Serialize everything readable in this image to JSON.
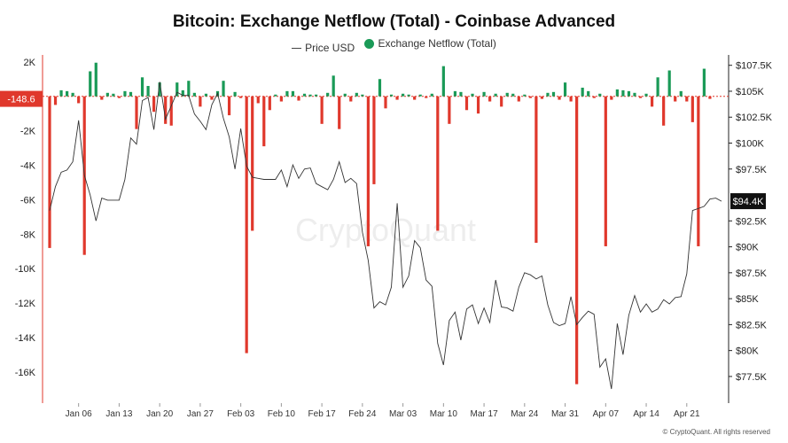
{
  "chart_data": {
    "type": "bar+line",
    "title": "Bitcoin: Exchange Netflow (Total) - Coinbase Advanced",
    "legend": [
      {
        "name": "Price USD",
        "marker": "line",
        "color": "#444444"
      },
      {
        "name": "Exchange Netflow (Total)",
        "marker": "dot",
        "color": "#1a9a57"
      }
    ],
    "legend_position": "top-center",
    "watermark": "CryptoQuant",
    "credit": "© CryptoQuant. All rights reserved",
    "colors": {
      "positive": "#1a9a57",
      "negative": "#e0382c",
      "price": "#333333",
      "zero_line": "#e0382c"
    },
    "x_axis": {
      "type": "date",
      "range": [
        "2025-01-01",
        "2025-04-27"
      ],
      "tick_labels": [
        "Jan 06",
        "Jan 13",
        "Jan 20",
        "Jan 27",
        "Feb 03",
        "Feb 10",
        "Feb 17",
        "Feb 24",
        "Mar 03",
        "Mar 10",
        "Mar 17",
        "Mar 24",
        "Mar 31",
        "Apr 07",
        "Apr 14",
        "Apr 21"
      ],
      "tick_dates": [
        "2025-01-06",
        "2025-01-13",
        "2025-01-20",
        "2025-01-27",
        "2025-02-03",
        "2025-02-10",
        "2025-02-17",
        "2025-02-24",
        "2025-03-03",
        "2025-03-10",
        "2025-03-17",
        "2025-03-24",
        "2025-03-31",
        "2025-04-07",
        "2025-04-14",
        "2025-04-21"
      ]
    },
    "y_left": {
      "name": "Exchange Netflow (Total)",
      "range": [
        -17800,
        2400
      ],
      "tick_values": [
        2000,
        -2000,
        -4000,
        -6000,
        -8000,
        -10000,
        -12000,
        -14000,
        -16000
      ],
      "tick_labels": [
        "2K",
        "-2K",
        "-4K",
        "-6K",
        "-8K",
        "-10K",
        "-12K",
        "-14K",
        "-16K"
      ],
      "current_value_label": "-148.6",
      "current_value": -148.6
    },
    "y_right": {
      "name": "Price USD",
      "range": [
        74930,
        108500
      ],
      "tick_values": [
        107500,
        105000,
        102500,
        100000,
        97500,
        92500,
        90000,
        87500,
        85000,
        82500,
        80000,
        77500
      ],
      "tick_labels": [
        "$107.5K",
        "$105K",
        "$102.5K",
        "$100K",
        "$97.5K",
        "$92.5K",
        "$90K",
        "$87.5K",
        "$85K",
        "$82.5K",
        "$80K",
        "$77.5K"
      ],
      "current_value_label": "$94.4K",
      "current_value": 94400
    },
    "grid": false,
    "netflow": [
      {
        "date": "2025-01-01",
        "value": -8800
      },
      {
        "date": "2025-01-02",
        "value": -500
      },
      {
        "date": "2025-01-03",
        "value": 350
      },
      {
        "date": "2025-01-04",
        "value": 300
      },
      {
        "date": "2025-01-05",
        "value": 200
      },
      {
        "date": "2025-01-06",
        "value": -400
      },
      {
        "date": "2025-01-07",
        "value": -9200
      },
      {
        "date": "2025-01-08",
        "value": 1450
      },
      {
        "date": "2025-01-09",
        "value": 1950
      },
      {
        "date": "2025-01-10",
        "value": -200
      },
      {
        "date": "2025-01-11",
        "value": 200
      },
      {
        "date": "2025-01-12",
        "value": 150
      },
      {
        "date": "2025-01-13",
        "value": -100
      },
      {
        "date": "2025-01-14",
        "value": 300
      },
      {
        "date": "2025-01-15",
        "value": 250
      },
      {
        "date": "2025-01-16",
        "value": -1900
      },
      {
        "date": "2025-01-17",
        "value": 1100
      },
      {
        "date": "2025-01-18",
        "value": 600
      },
      {
        "date": "2025-01-19",
        "value": -900
      },
      {
        "date": "2025-01-20",
        "value": 800
      },
      {
        "date": "2025-01-21",
        "value": -1600
      },
      {
        "date": "2025-01-22",
        "value": -1700
      },
      {
        "date": "2025-01-23",
        "value": 800
      },
      {
        "date": "2025-01-24",
        "value": 350
      },
      {
        "date": "2025-01-25",
        "value": 900
      },
      {
        "date": "2025-01-26",
        "value": 200
      },
      {
        "date": "2025-01-27",
        "value": -600
      },
      {
        "date": "2025-01-28",
        "value": 150
      },
      {
        "date": "2025-01-29",
        "value": -200
      },
      {
        "date": "2025-01-30",
        "value": 300
      },
      {
        "date": "2025-01-31",
        "value": 900
      },
      {
        "date": "2025-02-01",
        "value": -1100
      },
      {
        "date": "2025-02-02",
        "value": 250
      },
      {
        "date": "2025-02-03",
        "value": -100
      },
      {
        "date": "2025-02-04",
        "value": -14900
      },
      {
        "date": "2025-02-05",
        "value": -7800
      },
      {
        "date": "2025-02-06",
        "value": -400
      },
      {
        "date": "2025-02-07",
        "value": -2900
      },
      {
        "date": "2025-02-08",
        "value": -800
      },
      {
        "date": "2025-02-09",
        "value": 100
      },
      {
        "date": "2025-02-10",
        "value": -300
      },
      {
        "date": "2025-02-11",
        "value": 300
      },
      {
        "date": "2025-02-12",
        "value": 300
      },
      {
        "date": "2025-02-13",
        "value": -250
      },
      {
        "date": "2025-02-14",
        "value": 150
      },
      {
        "date": "2025-02-15",
        "value": 100
      },
      {
        "date": "2025-02-16",
        "value": 100
      },
      {
        "date": "2025-02-17",
        "value": -1600
      },
      {
        "date": "2025-02-18",
        "value": 200
      },
      {
        "date": "2025-02-19",
        "value": 1200
      },
      {
        "date": "2025-02-20",
        "value": -1900
      },
      {
        "date": "2025-02-21",
        "value": 150
      },
      {
        "date": "2025-02-22",
        "value": -300
      },
      {
        "date": "2025-02-23",
        "value": 200
      },
      {
        "date": "2025-02-24",
        "value": 100
      },
      {
        "date": "2025-02-25",
        "value": -8700
      },
      {
        "date": "2025-02-26",
        "value": -5100
      },
      {
        "date": "2025-02-27",
        "value": 1000
      },
      {
        "date": "2025-02-28",
        "value": -700
      },
      {
        "date": "2025-03-01",
        "value": 100
      },
      {
        "date": "2025-03-02",
        "value": -200
      },
      {
        "date": "2025-03-03",
        "value": 150
      },
      {
        "date": "2025-03-04",
        "value": 100
      },
      {
        "date": "2025-03-05",
        "value": -200
      },
      {
        "date": "2025-03-06",
        "value": 100
      },
      {
        "date": "2025-03-07",
        "value": -100
      },
      {
        "date": "2025-03-08",
        "value": 150
      },
      {
        "date": "2025-03-09",
        "value": -7800
      },
      {
        "date": "2025-03-10",
        "value": 1750
      },
      {
        "date": "2025-03-11",
        "value": -1600
      },
      {
        "date": "2025-03-12",
        "value": 300
      },
      {
        "date": "2025-03-13",
        "value": 250
      },
      {
        "date": "2025-03-14",
        "value": -800
      },
      {
        "date": "2025-03-15",
        "value": 150
      },
      {
        "date": "2025-03-16",
        "value": -1000
      },
      {
        "date": "2025-03-17",
        "value": 250
      },
      {
        "date": "2025-03-18",
        "value": -300
      },
      {
        "date": "2025-03-19",
        "value": 150
      },
      {
        "date": "2025-03-20",
        "value": -600
      },
      {
        "date": "2025-03-21",
        "value": 200
      },
      {
        "date": "2025-03-22",
        "value": 150
      },
      {
        "date": "2025-03-23",
        "value": -300
      },
      {
        "date": "2025-03-24",
        "value": 100
      },
      {
        "date": "2025-03-25",
        "value": -100
      },
      {
        "date": "2025-03-26",
        "value": -8500
      },
      {
        "date": "2025-03-27",
        "value": -150
      },
      {
        "date": "2025-03-28",
        "value": 200
      },
      {
        "date": "2025-03-29",
        "value": 250
      },
      {
        "date": "2025-03-30",
        "value": -200
      },
      {
        "date": "2025-03-31",
        "value": 800
      },
      {
        "date": "2025-04-01",
        "value": -300
      },
      {
        "date": "2025-04-02",
        "value": -16700
      },
      {
        "date": "2025-04-03",
        "value": 500
      },
      {
        "date": "2025-04-04",
        "value": 300
      },
      {
        "date": "2025-04-05",
        "value": -100
      },
      {
        "date": "2025-04-06",
        "value": 150
      },
      {
        "date": "2025-04-07",
        "value": -8700
      },
      {
        "date": "2025-04-08",
        "value": -200
      },
      {
        "date": "2025-04-09",
        "value": 400
      },
      {
        "date": "2025-04-10",
        "value": 350
      },
      {
        "date": "2025-04-11",
        "value": 300
      },
      {
        "date": "2025-04-12",
        "value": 200
      },
      {
        "date": "2025-04-13",
        "value": -100
      },
      {
        "date": "2025-04-14",
        "value": 150
      },
      {
        "date": "2025-04-15",
        "value": -600
      },
      {
        "date": "2025-04-16",
        "value": 1100
      },
      {
        "date": "2025-04-17",
        "value": -1700
      },
      {
        "date": "2025-04-18",
        "value": 1500
      },
      {
        "date": "2025-04-19",
        "value": -300
      },
      {
        "date": "2025-04-20",
        "value": 300
      },
      {
        "date": "2025-04-21",
        "value": -300
      },
      {
        "date": "2025-04-22",
        "value": -1500
      },
      {
        "date": "2025-04-23",
        "value": -8700
      },
      {
        "date": "2025-04-24",
        "value": 1600
      },
      {
        "date": "2025-04-25",
        "value": -148.6
      }
    ],
    "price": [
      {
        "date": "2025-01-01",
        "value": 93500
      },
      {
        "date": "2025-01-02",
        "value": 95800
      },
      {
        "date": "2025-01-03",
        "value": 97200
      },
      {
        "date": "2025-01-04",
        "value": 97400
      },
      {
        "date": "2025-01-05",
        "value": 98200
      },
      {
        "date": "2025-01-06",
        "value": 102200
      },
      {
        "date": "2025-01-07",
        "value": 96900
      },
      {
        "date": "2025-01-08",
        "value": 95000
      },
      {
        "date": "2025-01-09",
        "value": 92500
      },
      {
        "date": "2025-01-10",
        "value": 94700
      },
      {
        "date": "2025-01-11",
        "value": 94500
      },
      {
        "date": "2025-01-12",
        "value": 94500
      },
      {
        "date": "2025-01-13",
        "value": 94500
      },
      {
        "date": "2025-01-14",
        "value": 96500
      },
      {
        "date": "2025-01-15",
        "value": 100500
      },
      {
        "date": "2025-01-16",
        "value": 99900
      },
      {
        "date": "2025-01-17",
        "value": 104100
      },
      {
        "date": "2025-01-18",
        "value": 104400
      },
      {
        "date": "2025-01-19",
        "value": 101300
      },
      {
        "date": "2025-01-20",
        "value": 105900
      },
      {
        "date": "2025-01-21",
        "value": 102300
      },
      {
        "date": "2025-01-22",
        "value": 103600
      },
      {
        "date": "2025-01-23",
        "value": 104900
      },
      {
        "date": "2025-01-24",
        "value": 104600
      },
      {
        "date": "2025-01-25",
        "value": 104600
      },
      {
        "date": "2025-01-26",
        "value": 102800
      },
      {
        "date": "2025-01-27",
        "value": 102100
      },
      {
        "date": "2025-01-28",
        "value": 101300
      },
      {
        "date": "2025-01-29",
        "value": 103700
      },
      {
        "date": "2025-01-30",
        "value": 104800
      },
      {
        "date": "2025-01-31",
        "value": 102400
      },
      {
        "date": "2025-02-01",
        "value": 100600
      },
      {
        "date": "2025-02-02",
        "value": 97500
      },
      {
        "date": "2025-02-03",
        "value": 101400
      },
      {
        "date": "2025-02-04",
        "value": 97800
      },
      {
        "date": "2025-02-05",
        "value": 96700
      },
      {
        "date": "2025-02-06",
        "value": 96600
      },
      {
        "date": "2025-02-07",
        "value": 96500
      },
      {
        "date": "2025-02-08",
        "value": 96500
      },
      {
        "date": "2025-02-09",
        "value": 96500
      },
      {
        "date": "2025-02-10",
        "value": 97400
      },
      {
        "date": "2025-02-11",
        "value": 95800
      },
      {
        "date": "2025-02-12",
        "value": 97900
      },
      {
        "date": "2025-02-13",
        "value": 96600
      },
      {
        "date": "2025-02-14",
        "value": 97500
      },
      {
        "date": "2025-02-15",
        "value": 97600
      },
      {
        "date": "2025-02-16",
        "value": 96100
      },
      {
        "date": "2025-02-17",
        "value": 95800
      },
      {
        "date": "2025-02-18",
        "value": 95500
      },
      {
        "date": "2025-02-19",
        "value": 96500
      },
      {
        "date": "2025-02-20",
        "value": 98200
      },
      {
        "date": "2025-02-21",
        "value": 96200
      },
      {
        "date": "2025-02-22",
        "value": 96600
      },
      {
        "date": "2025-02-23",
        "value": 96100
      },
      {
        "date": "2025-02-24",
        "value": 91400
      },
      {
        "date": "2025-02-25",
        "value": 88700
      },
      {
        "date": "2025-02-26",
        "value": 84100
      },
      {
        "date": "2025-02-27",
        "value": 84700
      },
      {
        "date": "2025-02-28",
        "value": 84400
      },
      {
        "date": "2025-03-01",
        "value": 86100
      },
      {
        "date": "2025-03-02",
        "value": 94200
      },
      {
        "date": "2025-03-03",
        "value": 86100
      },
      {
        "date": "2025-03-04",
        "value": 87200
      },
      {
        "date": "2025-03-05",
        "value": 90600
      },
      {
        "date": "2025-03-06",
        "value": 89900
      },
      {
        "date": "2025-03-07",
        "value": 86800
      },
      {
        "date": "2025-03-08",
        "value": 86200
      },
      {
        "date": "2025-03-09",
        "value": 80700
      },
      {
        "date": "2025-03-10",
        "value": 78600
      },
      {
        "date": "2025-03-11",
        "value": 82900
      },
      {
        "date": "2025-03-12",
        "value": 83700
      },
      {
        "date": "2025-03-13",
        "value": 81000
      },
      {
        "date": "2025-03-14",
        "value": 84000
      },
      {
        "date": "2025-03-15",
        "value": 84400
      },
      {
        "date": "2025-03-16",
        "value": 82600
      },
      {
        "date": "2025-03-17",
        "value": 84100
      },
      {
        "date": "2025-03-18",
        "value": 82700
      },
      {
        "date": "2025-03-19",
        "value": 86800
      },
      {
        "date": "2025-03-20",
        "value": 84200
      },
      {
        "date": "2025-03-21",
        "value": 84100
      },
      {
        "date": "2025-03-22",
        "value": 83800
      },
      {
        "date": "2025-03-23",
        "value": 86100
      },
      {
        "date": "2025-03-24",
        "value": 87500
      },
      {
        "date": "2025-03-25",
        "value": 87300
      },
      {
        "date": "2025-03-26",
        "value": 86900
      },
      {
        "date": "2025-03-27",
        "value": 87200
      },
      {
        "date": "2025-03-28",
        "value": 84400
      },
      {
        "date": "2025-03-29",
        "value": 82700
      },
      {
        "date": "2025-03-30",
        "value": 82400
      },
      {
        "date": "2025-03-31",
        "value": 82600
      },
      {
        "date": "2025-04-01",
        "value": 85200
      },
      {
        "date": "2025-04-02",
        "value": 82500
      },
      {
        "date": "2025-04-03",
        "value": 83200
      },
      {
        "date": "2025-04-04",
        "value": 83800
      },
      {
        "date": "2025-04-05",
        "value": 83500
      },
      {
        "date": "2025-04-06",
        "value": 78400
      },
      {
        "date": "2025-04-07",
        "value": 79200
      },
      {
        "date": "2025-04-08",
        "value": 76300
      },
      {
        "date": "2025-04-09",
        "value": 82600
      },
      {
        "date": "2025-04-10",
        "value": 79600
      },
      {
        "date": "2025-04-11",
        "value": 83400
      },
      {
        "date": "2025-04-12",
        "value": 85300
      },
      {
        "date": "2025-04-13",
        "value": 83700
      },
      {
        "date": "2025-04-14",
        "value": 84500
      },
      {
        "date": "2025-04-15",
        "value": 83700
      },
      {
        "date": "2025-04-16",
        "value": 84000
      },
      {
        "date": "2025-04-17",
        "value": 84900
      },
      {
        "date": "2025-04-18",
        "value": 84500
      },
      {
        "date": "2025-04-19",
        "value": 85100
      },
      {
        "date": "2025-04-20",
        "value": 85200
      },
      {
        "date": "2025-04-21",
        "value": 87400
      },
      {
        "date": "2025-04-22",
        "value": 93500
      },
      {
        "date": "2025-04-23",
        "value": 93700
      },
      {
        "date": "2025-04-24",
        "value": 93900
      },
      {
        "date": "2025-04-25",
        "value": 94600
      },
      {
        "date": "2025-04-26",
        "value": 94700
      },
      {
        "date": "2025-04-27",
        "value": 94400
      }
    ]
  }
}
